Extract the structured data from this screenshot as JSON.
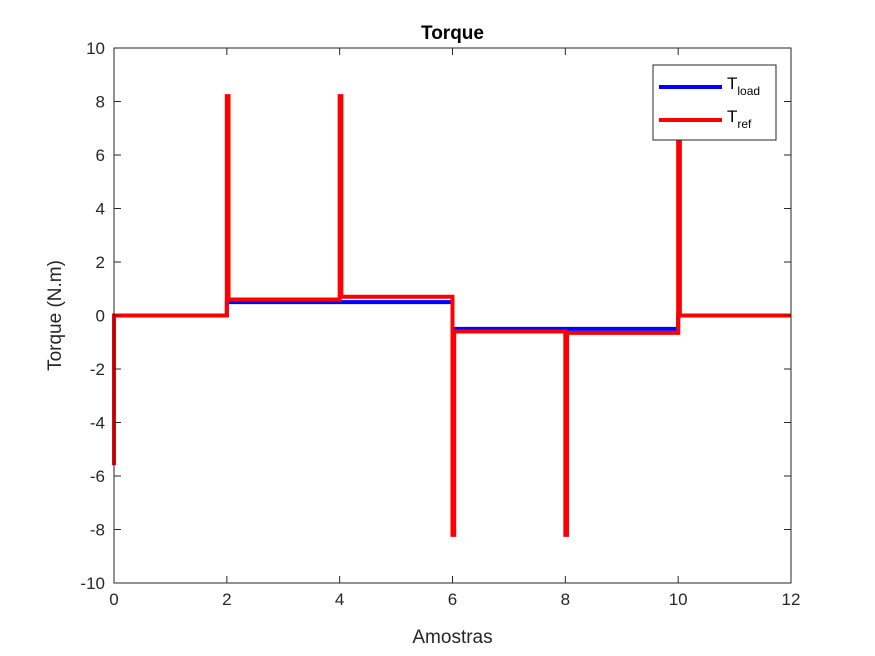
{
  "chart_data": {
    "type": "line",
    "title": "Torque",
    "xlabel": "Amostras",
    "ylabel": "Torque (N.m)",
    "xlim": [
      0,
      12
    ],
    "ylim": [
      -10,
      10
    ],
    "xticks": [
      0,
      2,
      4,
      6,
      8,
      10,
      12
    ],
    "yticks": [
      -10,
      -8,
      -6,
      -4,
      -2,
      0,
      2,
      4,
      6,
      8,
      10
    ],
    "grid": false,
    "legend_position": "top-right",
    "series": [
      {
        "name": "T_load",
        "legend_main": "T",
        "legend_sub": "load",
        "color": "#0000ff",
        "x": [
          0,
          2,
          2,
          6,
          6,
          10,
          10,
          12
        ],
        "y": [
          0,
          0,
          0.5,
          0.5,
          -0.5,
          -0.5,
          0,
          0
        ]
      },
      {
        "name": "T_ref",
        "legend_main": "T",
        "legend_sub": "ref",
        "color": "#ff0000",
        "x": [
          0,
          0,
          0.02,
          2,
          2,
          2.03,
          2.03,
          4,
          4,
          4.03,
          4.03,
          6,
          6,
          6.03,
          6.03,
          8,
          8,
          8.03,
          8.03,
          10,
          10,
          10.03,
          10.03,
          12
        ],
        "y": [
          -5.6,
          0,
          0,
          0,
          8.2,
          8.2,
          0.6,
          0.6,
          8.2,
          8.2,
          0.7,
          0.7,
          -8.2,
          -8.2,
          -0.6,
          -0.6,
          -8.2,
          -8.2,
          -0.65,
          -0.65,
          6.8,
          6.8,
          0,
          0
        ]
      }
    ]
  }
}
